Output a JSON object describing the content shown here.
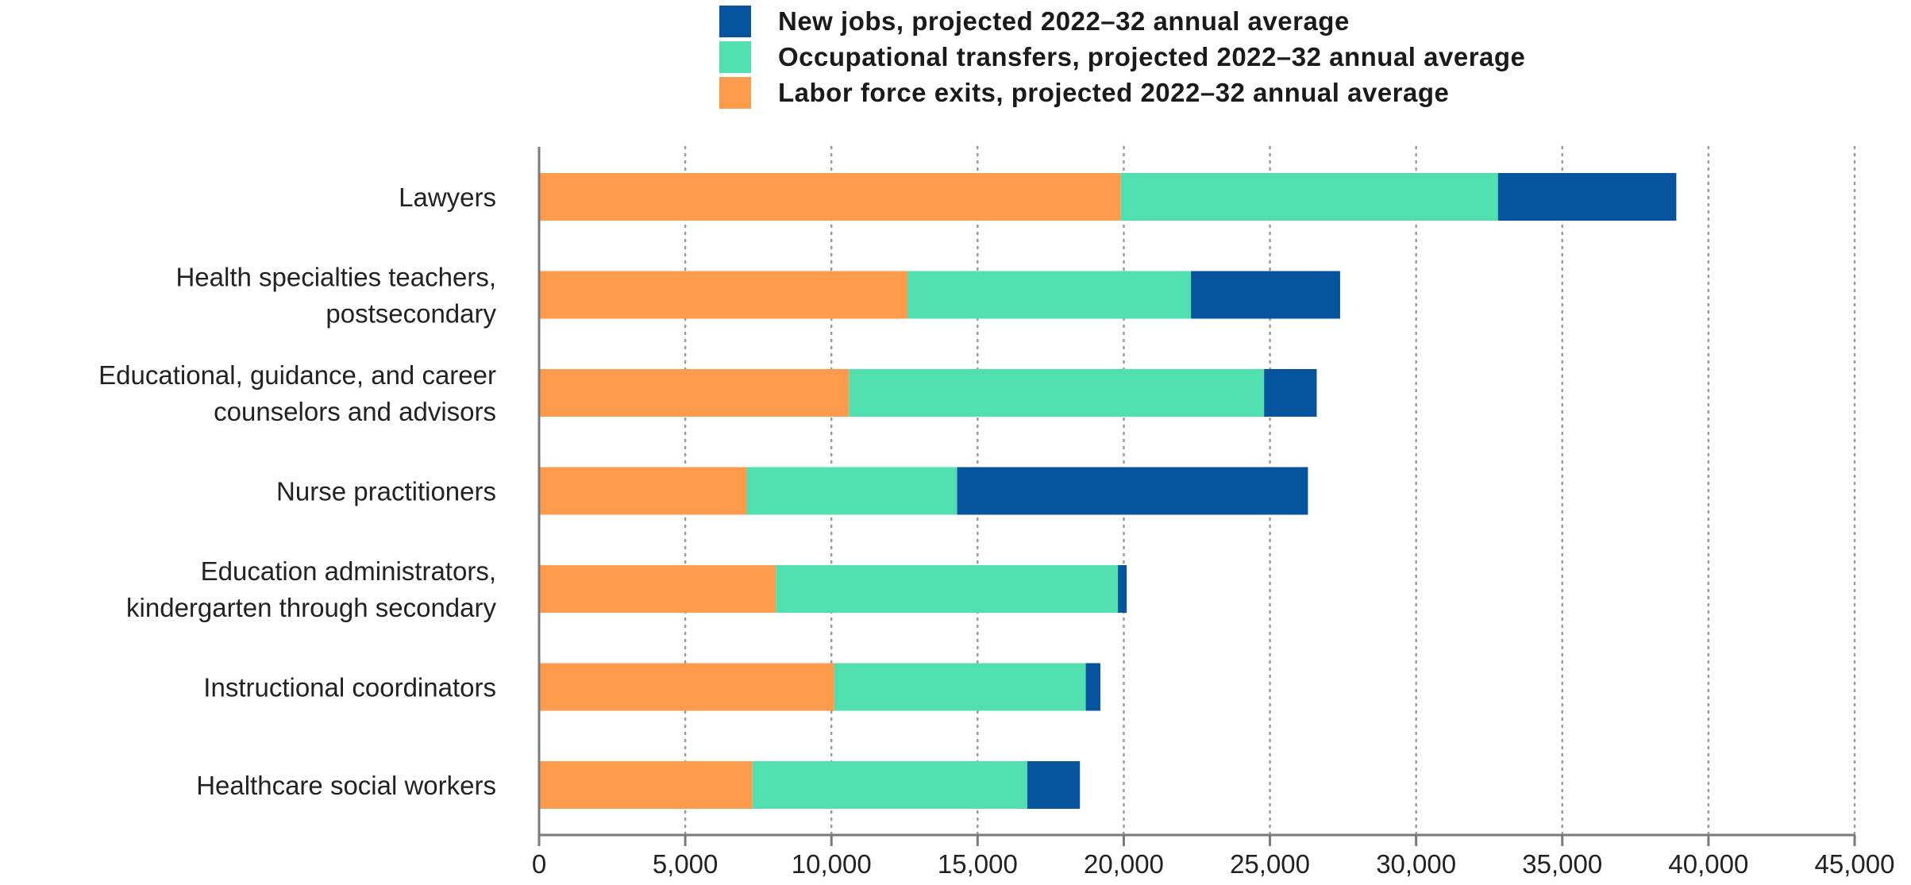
{
  "chart_data": {
    "type": "bar",
    "orientation": "horizontal",
    "stacked": true,
    "categories": [
      "Lawyers",
      "Health specialties teachers, postsecondary",
      "Educational, guidance, and career counselors and advisors",
      "Nurse practitioners",
      "Education administrators, kindergarten through secondary",
      "Instructional coordinators",
      "Healthcare social workers"
    ],
    "category_lines": [
      [
        "Lawyers"
      ],
      [
        "Health specialties teachers,",
        "postsecondary"
      ],
      [
        "Educational, guidance, and career",
        "counselors and advisors"
      ],
      [
        "Nurse practitioners"
      ],
      [
        "Education administrators,",
        "kindergarten through secondary"
      ],
      [
        "Instructional coordinators"
      ],
      [
        "Healthcare social workers"
      ]
    ],
    "series": [
      {
        "name": "Labor force exits, projected 2022–32 annual average",
        "color": "#fd9a4b",
        "values": [
          19900,
          12600,
          10600,
          7100,
          8100,
          10100,
          7300
        ]
      },
      {
        "name": "Occupational transfers, projected 2022–32 annual average",
        "color": "#52dfb0",
        "values": [
          12900,
          9700,
          14200,
          7200,
          11700,
          8600,
          9400
        ]
      },
      {
        "name": "New jobs, projected 2022–32 annual average",
        "color": "#06539e",
        "values": [
          6100,
          5100,
          1800,
          12000,
          300,
          500,
          1800
        ]
      }
    ],
    "legend_order": [
      2,
      1,
      0
    ],
    "xlim": [
      0,
      45000
    ],
    "xticks": [
      0,
      5000,
      10000,
      15000,
      20000,
      25000,
      30000,
      35000,
      40000,
      45000
    ],
    "xtick_labels": [
      "0",
      "5,000",
      "10,000",
      "15,000",
      "20,000",
      "25,000",
      "30,000",
      "35,000",
      "40,000",
      "45,000"
    ],
    "grid": "vertical dotted",
    "legend_position": "top",
    "title": "",
    "xlabel": "",
    "ylabel": ""
  }
}
